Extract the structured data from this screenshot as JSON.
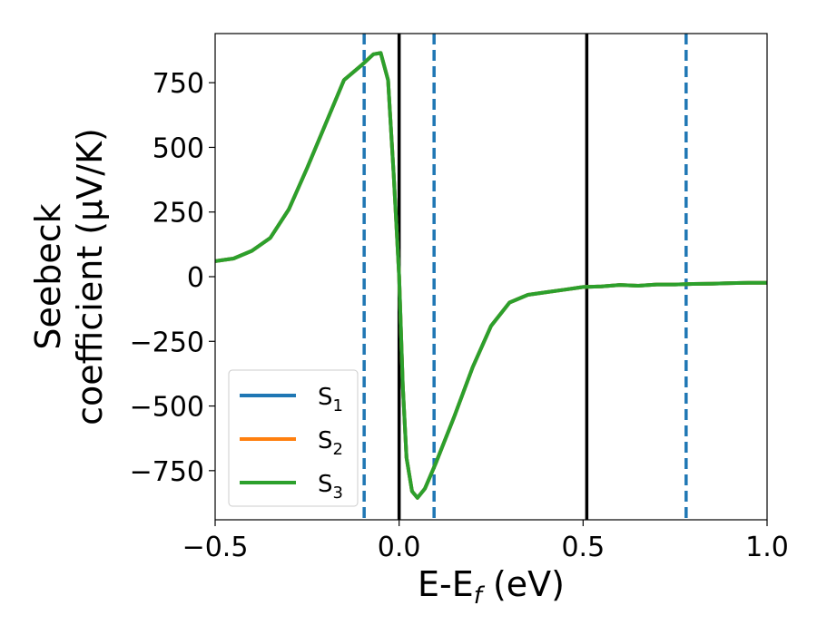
{
  "chart_data": {
    "type": "line",
    "xlabel": "E-E",
    "xlabel_sub": "f",
    "xlabel_suffix": " (eV)",
    "ylabel_line1": "Seebeck",
    "ylabel_line2": "coefficient  (μV/K)",
    "xlim": [
      -0.5,
      1.0
    ],
    "ylim": [
      -940,
      940
    ],
    "xticks": [
      -0.5,
      0.0,
      0.5,
      1.0
    ],
    "xtick_labels": [
      "−0.5",
      "0.0",
      "0.5",
      "1.0"
    ],
    "yticks": [
      -750,
      -500,
      -250,
      0,
      250,
      500,
      750
    ],
    "ytick_labels": [
      "−750",
      "−500",
      "−250",
      "0",
      "250",
      "500",
      "750"
    ],
    "grid": false,
    "legend_position": "lower-left",
    "series": [
      {
        "name": "S",
        "name_sub": "1",
        "color": "#1f77b4",
        "x": [
          -0.5,
          -0.45,
          -0.4,
          -0.35,
          -0.3,
          -0.25,
          -0.2,
          -0.15,
          -0.1,
          -0.07,
          -0.05,
          -0.03,
          -0.015,
          0.0,
          0.01,
          0.02,
          0.035,
          0.05,
          0.07,
          0.1,
          0.15,
          0.2,
          0.25,
          0.3,
          0.35,
          0.4,
          0.45,
          0.5,
          0.55,
          0.6,
          0.65,
          0.7,
          0.75,
          0.8,
          0.85,
          0.9,
          0.95,
          1.0
        ],
        "y": [
          60,
          70,
          100,
          150,
          260,
          420,
          590,
          760,
          820,
          860,
          865,
          760,
          400,
          0,
          -420,
          -700,
          -830,
          -855,
          -820,
          -720,
          -540,
          -350,
          -190,
          -100,
          -70,
          -60,
          -50,
          -40,
          -38,
          -32,
          -35,
          -30,
          -30,
          -28,
          -27,
          -25,
          -24,
          -24
        ]
      },
      {
        "name": "S",
        "name_sub": "2",
        "color": "#ff7f0e",
        "x": [
          -0.5,
          -0.45,
          -0.4,
          -0.35,
          -0.3,
          -0.25,
          -0.2,
          -0.15,
          -0.1,
          -0.07,
          -0.05,
          -0.03,
          -0.015,
          0.0,
          0.01,
          0.02,
          0.035,
          0.05,
          0.07,
          0.1,
          0.15,
          0.2,
          0.25,
          0.3,
          0.35,
          0.4,
          0.45,
          0.5,
          0.55,
          0.6,
          0.65,
          0.7,
          0.75,
          0.8,
          0.85,
          0.9,
          0.95,
          1.0
        ],
        "y": [
          60,
          70,
          100,
          150,
          260,
          420,
          590,
          760,
          820,
          860,
          865,
          760,
          400,
          0,
          -420,
          -700,
          -830,
          -855,
          -820,
          -720,
          -540,
          -350,
          -190,
          -100,
          -70,
          -60,
          -50,
          -40,
          -38,
          -32,
          -35,
          -30,
          -30,
          -28,
          -27,
          -25,
          -24,
          -24
        ]
      },
      {
        "name": "S",
        "name_sub": "3",
        "color": "#2ca02c",
        "x": [
          -0.5,
          -0.45,
          -0.4,
          -0.35,
          -0.3,
          -0.25,
          -0.2,
          -0.15,
          -0.1,
          -0.07,
          -0.05,
          -0.03,
          -0.015,
          0.0,
          0.01,
          0.02,
          0.035,
          0.05,
          0.07,
          0.1,
          0.15,
          0.2,
          0.25,
          0.3,
          0.35,
          0.4,
          0.45,
          0.5,
          0.55,
          0.6,
          0.65,
          0.7,
          0.75,
          0.8,
          0.85,
          0.9,
          0.95,
          1.0
        ],
        "y": [
          60,
          70,
          100,
          150,
          260,
          420,
          590,
          760,
          820,
          860,
          865,
          760,
          400,
          0,
          -420,
          -700,
          -830,
          -855,
          -820,
          -720,
          -540,
          -350,
          -190,
          -100,
          -70,
          -60,
          -50,
          -40,
          -38,
          -32,
          -35,
          -30,
          -30,
          -28,
          -27,
          -25,
          -24,
          -24
        ]
      }
    ],
    "vertical_lines": [
      {
        "x": -0.095,
        "style": "dashed",
        "color": "#1f77b4"
      },
      {
        "x": 0.0,
        "style": "solid",
        "color": "#000000"
      },
      {
        "x": 0.095,
        "style": "dashed",
        "color": "#1f77b4"
      },
      {
        "x": 0.51,
        "style": "solid",
        "color": "#000000"
      },
      {
        "x": 0.78,
        "style": "dashed",
        "color": "#1f77b4"
      }
    ]
  }
}
